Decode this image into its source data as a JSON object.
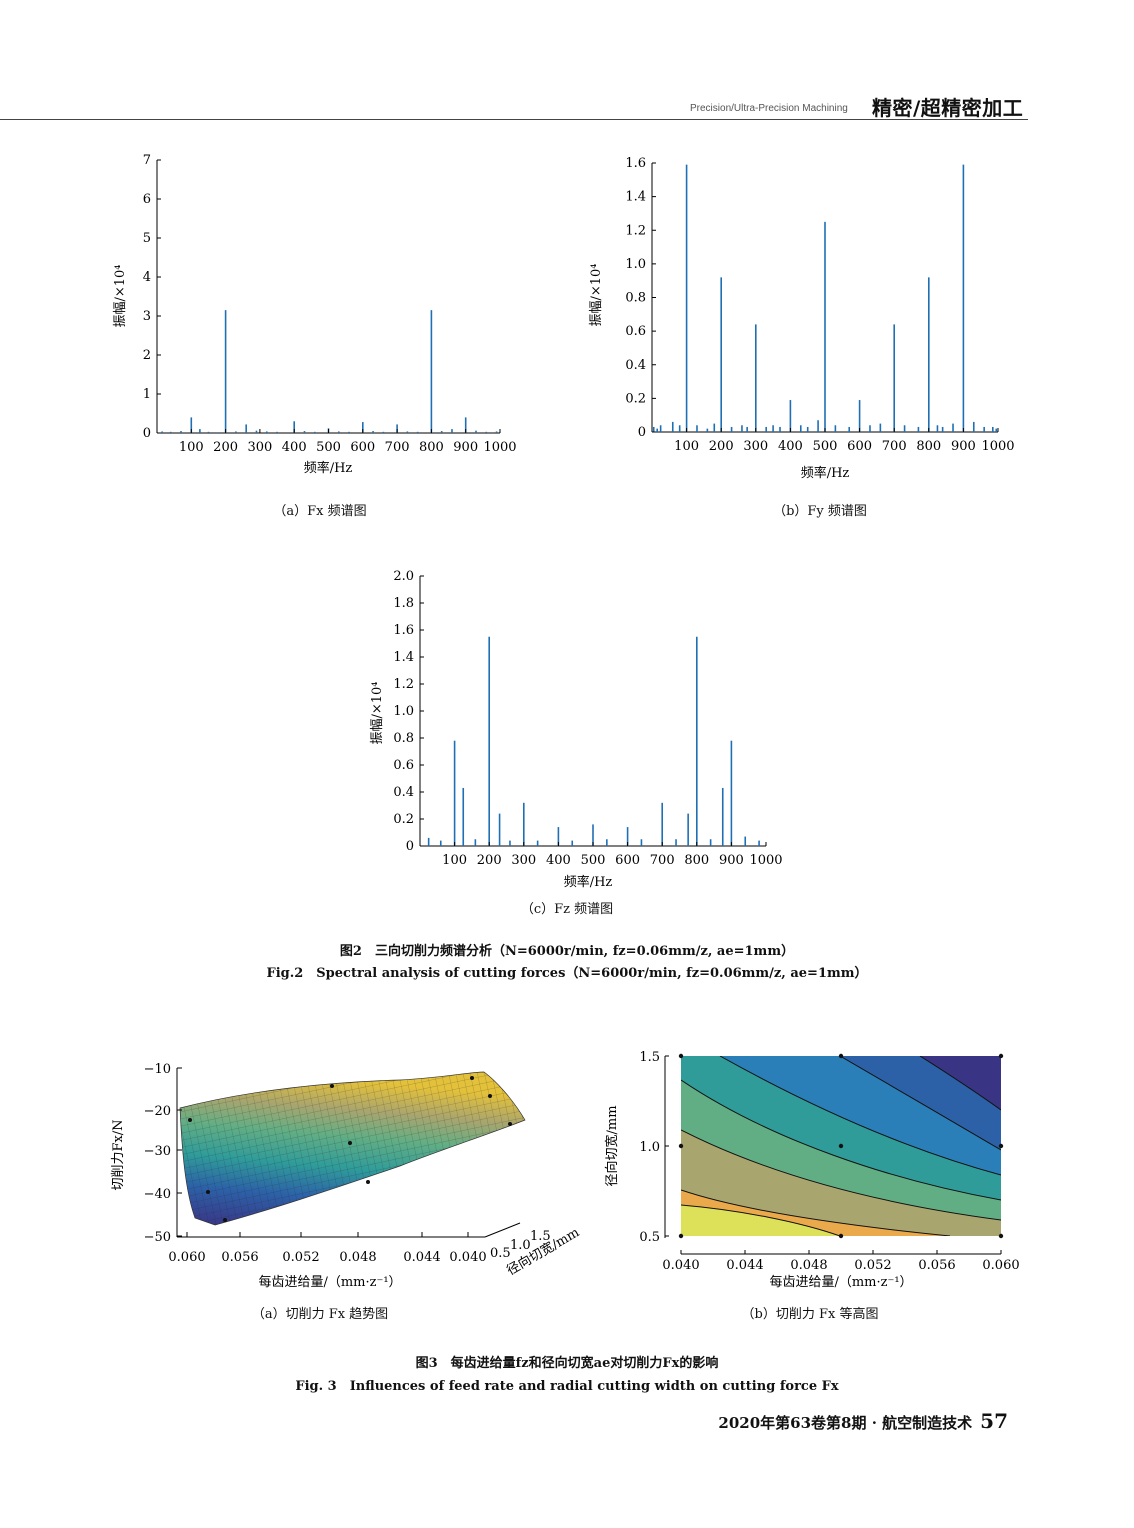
{
  "header": {
    "en": "Precision/Ultra-Precision Machining",
    "cn": "精密/超精密加工"
  },
  "fig2": {
    "caption_cn": "图2　三向切削力频谱分析（N=6000r/min, fz=0.06mm/z, ae=1mm）",
    "caption_en": "Fig.2　Spectral analysis of cutting forces（N=6000r/min, fz=0.06mm/z, ae=1mm）",
    "sub_a": "（a）Fx 频谱图",
    "sub_b": "（b）Fy 频谱图",
    "sub_c": "（c）Fz 频谱图"
  },
  "fig3": {
    "caption_cn": "图3　每齿进给量fz和径向切宽ae对切削力Fx的影响",
    "caption_en": "Fig. 3　Influences of feed rate and radial cutting width on cutting force Fx",
    "sub_a": "（a）切削力 Fx 趋势图",
    "sub_b": "（b）切削力 Fx 等高图"
  },
  "chart_data": [
    {
      "id": "fx-spectrum",
      "type": "bar",
      "xlabel": "频率/Hz",
      "ylabel": "振幅/×10⁴",
      "xlim": [
        0,
        1000
      ],
      "ylim": [
        0,
        7
      ],
      "xticks": [
        100,
        200,
        300,
        400,
        500,
        600,
        700,
        800,
        900,
        1000
      ],
      "yticks": [
        0,
        1,
        2,
        3,
        4,
        5,
        6,
        7
      ],
      "color": "#1f6fb4",
      "x": [
        15,
        40,
        70,
        100,
        125,
        150,
        175,
        200,
        230,
        260,
        290,
        320,
        350,
        400,
        430,
        460,
        500,
        530,
        560,
        600,
        630,
        660,
        700,
        730,
        760,
        800,
        830,
        860,
        900,
        930,
        960,
        990
      ],
      "values": [
        0.04,
        0.03,
        0.05,
        0.4,
        0.1,
        0.03,
        0.02,
        3.15,
        0.04,
        0.22,
        0.06,
        0.04,
        0.03,
        0.3,
        0.05,
        0.03,
        0.12,
        0.04,
        0.03,
        0.28,
        0.05,
        0.03,
        0.22,
        0.04,
        0.03,
        3.15,
        0.05,
        0.1,
        0.4,
        0.06,
        0.03,
        0.04
      ]
    },
    {
      "id": "fy-spectrum",
      "type": "bar",
      "xlabel": "频率/Hz",
      "ylabel": "振幅/×10⁴",
      "xlim": [
        0,
        1000
      ],
      "ylim": [
        0,
        1.6
      ],
      "xticks": [
        100,
        200,
        300,
        400,
        500,
        600,
        700,
        800,
        900,
        1000
      ],
      "yticks": [
        0,
        0.2,
        0.4,
        0.6,
        0.8,
        1.0,
        1.2,
        1.4,
        1.6
      ],
      "ytick_labels": [
        "0",
        "0.2",
        "0.4",
        "0.6",
        "0.8",
        "1.0",
        "1.2",
        "1.4",
        "1.6"
      ],
      "color": "#1f6fb4",
      "x": [
        5,
        15,
        25,
        60,
        80,
        100,
        130,
        160,
        180,
        200,
        230,
        260,
        275,
        300,
        330,
        350,
        370,
        400,
        430,
        450,
        480,
        500,
        530,
        570,
        600,
        630,
        660,
        700,
        730,
        770,
        800,
        825,
        840,
        870,
        900,
        930,
        960,
        985,
        995
      ],
      "values": [
        0.03,
        0.02,
        0.04,
        0.06,
        0.04,
        1.59,
        0.04,
        0.02,
        0.05,
        0.92,
        0.03,
        0.04,
        0.03,
        0.64,
        0.03,
        0.04,
        0.03,
        0.19,
        0.04,
        0.03,
        0.07,
        1.25,
        0.04,
        0.03,
        0.19,
        0.04,
        0.05,
        0.64,
        0.04,
        0.03,
        0.92,
        0.04,
        0.03,
        0.05,
        1.59,
        0.06,
        0.03,
        0.03,
        0.02
      ]
    },
    {
      "id": "fz-spectrum",
      "type": "bar",
      "xlabel": "频率/Hz",
      "ylabel": "振幅/×10⁴",
      "xlim": [
        0,
        1000
      ],
      "ylim": [
        0,
        2.0
      ],
      "xticks": [
        100,
        200,
        300,
        400,
        500,
        600,
        700,
        800,
        900,
        1000
      ],
      "yticks": [
        0,
        0.2,
        0.4,
        0.6,
        0.8,
        1.0,
        1.2,
        1.4,
        1.6,
        1.8,
        2.0
      ],
      "ytick_labels": [
        "0",
        "0.2",
        "0.4",
        "0.6",
        "0.8",
        "1.0",
        "1.2",
        "1.4",
        "1.6",
        "1.8",
        "2.0"
      ],
      "color": "#1f6fb4",
      "x": [
        25,
        60,
        100,
        125,
        160,
        200,
        230,
        260,
        300,
        340,
        400,
        440,
        500,
        540,
        600,
        640,
        700,
        740,
        775,
        800,
        840,
        875,
        900,
        940,
        980
      ],
      "values": [
        0.06,
        0.04,
        0.78,
        0.43,
        0.05,
        1.55,
        0.24,
        0.04,
        0.32,
        0.04,
        0.14,
        0.04,
        0.16,
        0.05,
        0.14,
        0.05,
        0.32,
        0.05,
        0.24,
        1.55,
        0.05,
        0.43,
        0.78,
        0.07,
        0.04
      ]
    },
    {
      "id": "fx-trend-surface",
      "type": "surface",
      "xlabel": "每齿进给量/（mm·z⁻¹）",
      "ylabel": "径向切宽/mm",
      "zlabel": "切削力Fx/N",
      "xticks": [
        "0.060",
        "0.056",
        "0.052",
        "0.048",
        "0.044",
        "0.040"
      ],
      "yticks": [
        "0.5",
        "1.0",
        "1.5"
      ],
      "zticks": [
        "−10",
        "−20",
        "−30",
        "−40",
        "−50"
      ],
      "zlim": [
        -50,
        -10
      ],
      "points": [
        {
          "fz": 0.04,
          "ae": 0.5,
          "fx": -13
        },
        {
          "fz": 0.05,
          "ae": 0.5,
          "fx": -15
        },
        {
          "fz": 0.06,
          "ae": 0.5,
          "fx": -23
        },
        {
          "fz": 0.04,
          "ae": 1.0,
          "fx": -17
        },
        {
          "fz": 0.05,
          "ae": 1.0,
          "fx": -28
        },
        {
          "fz": 0.06,
          "ae": 1.0,
          "fx": -40
        },
        {
          "fz": 0.04,
          "ae": 1.5,
          "fx": -23
        },
        {
          "fz": 0.05,
          "ae": 1.5,
          "fx": -37
        },
        {
          "fz": 0.06,
          "ae": 1.5,
          "fx": -47
        }
      ]
    },
    {
      "id": "fx-contour",
      "type": "heatmap",
      "xlabel": "每齿进给量/（mm·z⁻¹）",
      "ylabel": "径向切宽/mm",
      "xlim": [
        0.04,
        0.06
      ],
      "ylim": [
        0.5,
        1.5
      ],
      "xticks": [
        "0.040",
        "0.044",
        "0.048",
        "0.052",
        "0.056",
        "0.060"
      ],
      "yticks": [
        "0.5",
        "1.0",
        "1.5"
      ],
      "levels_colors": [
        "#dde15a",
        "#eaa94a",
        "#a9a56e",
        "#62ae84",
        "#2f9c9a",
        "#2b7fb8",
        "#2c61a8",
        "#3a3485"
      ],
      "sample_points": [
        [
          0.04,
          0.5
        ],
        [
          0.05,
          0.5
        ],
        [
          0.06,
          0.5
        ],
        [
          0.04,
          1.0
        ],
        [
          0.05,
          1.0
        ],
        [
          0.06,
          1.0
        ],
        [
          0.04,
          1.5
        ],
        [
          0.05,
          1.5
        ],
        [
          0.06,
          1.5
        ]
      ]
    }
  ],
  "footer": {
    "text": "2020年第63卷第8期 · 航空制造技术",
    "page": "57"
  }
}
